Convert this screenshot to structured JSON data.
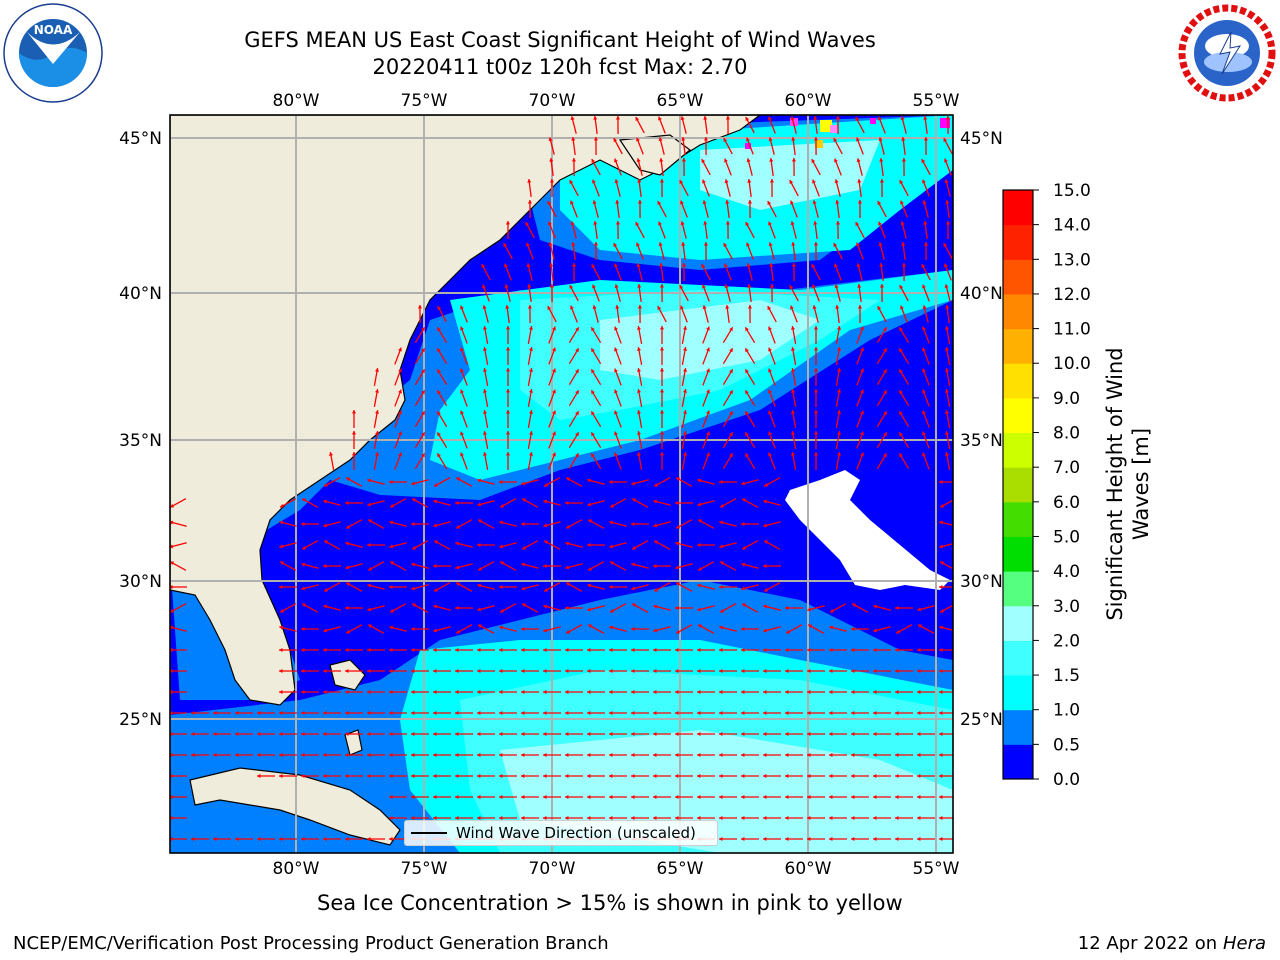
{
  "title": {
    "line1": "GEFS MEAN US East Coast Significant Height of Wind Waves",
    "line2": "20220411 t00z 120h fcst   Max: 2.70"
  },
  "map": {
    "lon_ticks": [
      "80°W",
      "75°W",
      "70°W",
      "65°W",
      "60°W",
      "55°W"
    ],
    "lat_ticks": [
      "45°N",
      "40°N",
      "35°N",
      "30°N",
      "25°N"
    ],
    "legend_label": "Wind Wave Direction (unscaled)",
    "arrow_color": "#ff0000",
    "land_color": "#efecdb",
    "extent": {
      "lon_min": -85,
      "lon_max": -54.3,
      "lat_min": 20.5,
      "lat_max": 45.8
    }
  },
  "colorbar": {
    "title": "Significant Height of Wind Waves [m]",
    "levels": [
      "0.0",
      "0.5",
      "1.0",
      "1.5",
      "2.0",
      "3.0",
      "4.0",
      "5.0",
      "6.0",
      "7.0",
      "8.0",
      "9.0",
      "10.0",
      "11.0",
      "12.0",
      "13.0",
      "14.0",
      "15.0"
    ],
    "colors": [
      "#0000ff",
      "#0080ff",
      "#00ffff",
      "#40ffff",
      "#a0ffff",
      "#55ff80",
      "#00dd00",
      "#44dd00",
      "#aadd00",
      "#ccff00",
      "#ffff00",
      "#ffe000",
      "#ffb000",
      "#ff8800",
      "#ff5500",
      "#ff2200",
      "#ff0000"
    ]
  },
  "sea_ice_note": "Sea Ice Concentration > 15% is shown in pink to yellow",
  "footer": {
    "left": "NCEP/EMC/Verification Post Processing Product Generation Branch",
    "right_prefix": "12 Apr 2022 on ",
    "right_host": "Hera"
  },
  "logos": {
    "left": "noaa-logo",
    "right": "nws-logo"
  }
}
